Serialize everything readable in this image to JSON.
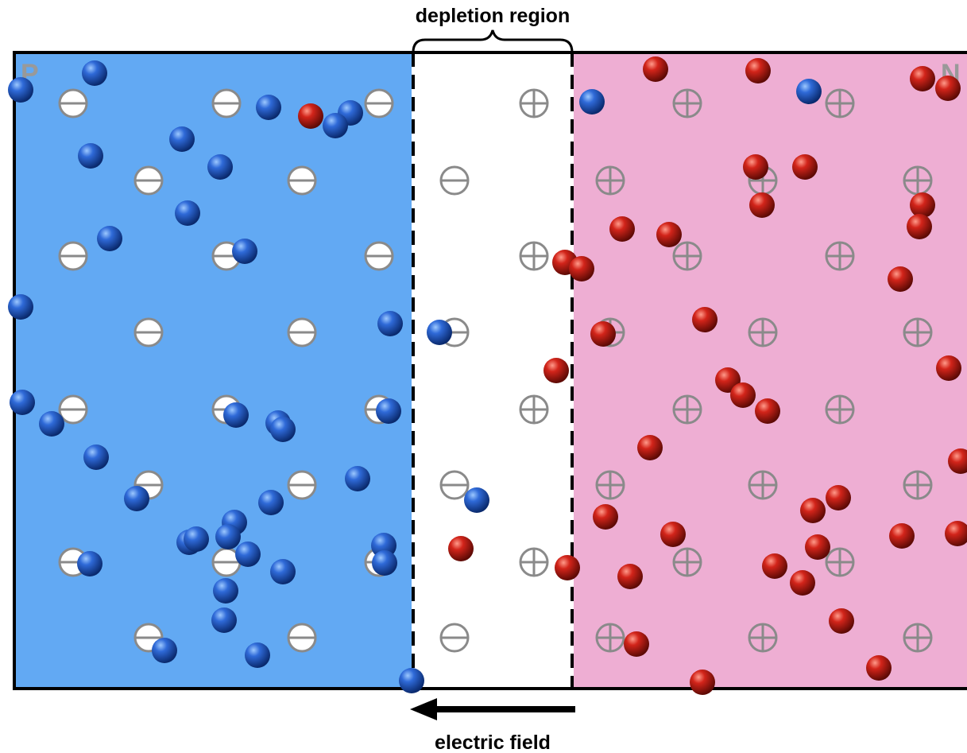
{
  "labels": {
    "top": "depletion region",
    "bottom": "electric field",
    "p_side": "P",
    "n_side": "N"
  }
}
